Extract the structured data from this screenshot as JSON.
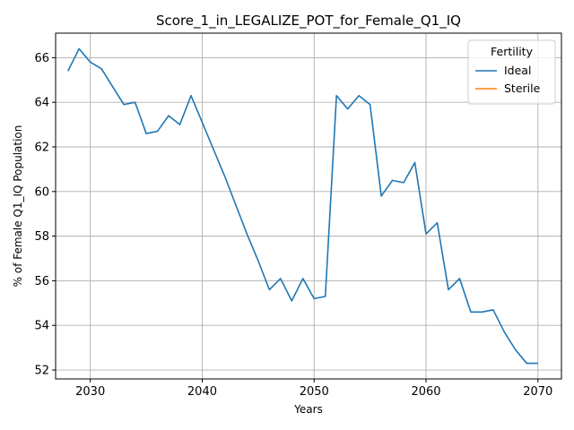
{
  "chart_data": {
    "type": "line",
    "title": "Score_1_in_LEGALIZE_POT_for_Female_Q1_IQ",
    "xlabel": "Years",
    "ylabel": "% of Female Q1_IQ Population",
    "xlim": [
      2026.9,
      2072.1
    ],
    "ylim": [
      51.6,
      67.1
    ],
    "xticks": [
      2030,
      2040,
      2050,
      2060,
      2070
    ],
    "yticks": [
      52,
      54,
      56,
      58,
      60,
      62,
      64,
      66
    ],
    "grid": true,
    "legend": {
      "title": "Fertility",
      "placement": "top-right"
    },
    "series": [
      {
        "name": "Ideal",
        "color": "#1f77b4",
        "x": [
          2028,
          2029,
          2030,
          2031,
          2032,
          2033,
          2034,
          2035,
          2036,
          2037,
          2038,
          2039,
          2040,
          2041,
          2042,
          2043,
          2044,
          2045,
          2046,
          2047,
          2048,
          2049,
          2050,
          2051,
          2052,
          2053,
          2054,
          2055,
          2056,
          2057,
          2058,
          2059,
          2060,
          2061,
          2062,
          2063,
          2064,
          2065,
          2066,
          2067,
          2068,
          2069,
          2070
        ],
        "y": [
          65.4,
          66.4,
          65.8,
          65.5,
          64.7,
          63.9,
          64.0,
          62.6,
          62.7,
          63.4,
          63.0,
          64.3,
          63.1,
          61.9,
          60.7,
          59.4,
          58.1,
          56.9,
          55.6,
          56.1,
          55.1,
          56.1,
          55.2,
          55.3,
          64.3,
          63.7,
          64.3,
          63.9,
          59.8,
          60.5,
          60.4,
          61.3,
          58.1,
          58.6,
          55.6,
          56.1,
          54.6,
          54.6,
          54.7,
          53.7,
          52.9,
          52.3,
          52.3
        ]
      },
      {
        "name": "Sterile",
        "color": "#ff7f0e",
        "x": [],
        "y": []
      }
    ]
  }
}
